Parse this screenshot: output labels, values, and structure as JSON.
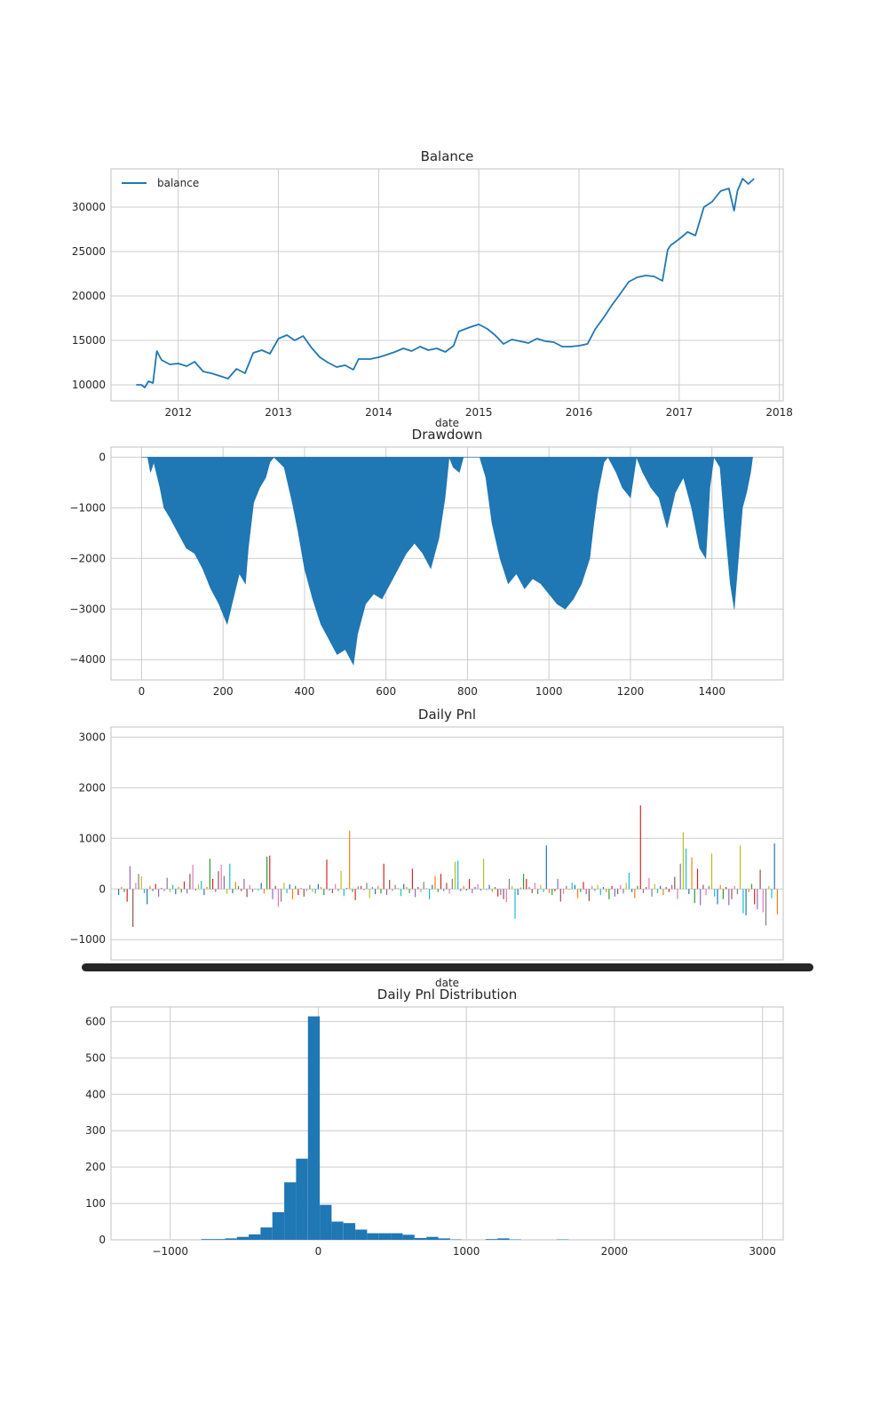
{
  "chart_data": [
    {
      "type": "line",
      "title": "Balance",
      "xlabel": "date",
      "ylabel": "",
      "legend": {
        "position": "upper-left",
        "entries": [
          "balance"
        ]
      },
      "grid": true,
      "color": "#1f77b4",
      "x_tick_labels": [
        "2012",
        "2013",
        "2014",
        "2015",
        "2016",
        "2017",
        "2018"
      ],
      "y_tick_labels": [
        "10000",
        "15000",
        "20000",
        "25000",
        "30000"
      ],
      "xlim": [
        "2011-05-01",
        "2018-01-15"
      ],
      "ylim": [
        8200,
        34300
      ],
      "series": [
        {
          "name": "balance",
          "points": [
            [
              "2011-08-01",
              10000
            ],
            [
              "2011-08-20",
              10000
            ],
            [
              "2011-09-01",
              9700
            ],
            [
              "2011-09-15",
              10400
            ],
            [
              "2011-10-01",
              10200
            ],
            [
              "2011-10-15",
              13800
            ],
            [
              "2011-11-01",
              12800
            ],
            [
              "2011-12-01",
              12300
            ],
            [
              "2012-01-01",
              12400
            ],
            [
              "2012-02-01",
              12100
            ],
            [
              "2012-03-01",
              12600
            ],
            [
              "2012-04-01",
              11500
            ],
            [
              "2012-05-01",
              11300
            ],
            [
              "2012-06-01",
              11000
            ],
            [
              "2012-07-01",
              10700
            ],
            [
              "2012-08-01",
              11800
            ],
            [
              "2012-09-01",
              11300
            ],
            [
              "2012-10-01",
              13600
            ],
            [
              "2012-11-01",
              13900
            ],
            [
              "2012-12-01",
              13500
            ],
            [
              "2013-01-01",
              15200
            ],
            [
              "2013-02-01",
              15600
            ],
            [
              "2013-03-01",
              15000
            ],
            [
              "2013-04-01",
              15500
            ],
            [
              "2013-05-01",
              14200
            ],
            [
              "2013-06-01",
              13100
            ],
            [
              "2013-07-01",
              12500
            ],
            [
              "2013-08-01",
              12000
            ],
            [
              "2013-09-01",
              12200
            ],
            [
              "2013-10-01",
              11700
            ],
            [
              "2013-10-20",
              12900
            ],
            [
              "2013-12-01",
              12900
            ],
            [
              "2014-01-01",
              13100
            ],
            [
              "2014-02-01",
              13400
            ],
            [
              "2014-03-01",
              13700
            ],
            [
              "2014-04-01",
              14100
            ],
            [
              "2014-05-01",
              13800
            ],
            [
              "2014-06-01",
              14300
            ],
            [
              "2014-07-01",
              13900
            ],
            [
              "2014-08-01",
              14100
            ],
            [
              "2014-09-01",
              13700
            ],
            [
              "2014-10-01",
              14400
            ],
            [
              "2014-10-20",
              16000
            ],
            [
              "2014-12-01",
              16500
            ],
            [
              "2015-01-01",
              16800
            ],
            [
              "2015-02-01",
              16300
            ],
            [
              "2015-03-01",
              15600
            ],
            [
              "2015-04-01",
              14600
            ],
            [
              "2015-05-01",
              15100
            ],
            [
              "2015-06-01",
              14900
            ],
            [
              "2015-07-01",
              14700
            ],
            [
              "2015-08-01",
              15200
            ],
            [
              "2015-09-01",
              14900
            ],
            [
              "2015-10-01",
              14800
            ],
            [
              "2015-11-01",
              14300
            ],
            [
              "2015-12-01",
              14300
            ],
            [
              "2016-01-01",
              14400
            ],
            [
              "2016-02-01",
              14600
            ],
            [
              "2016-03-01",
              16300
            ],
            [
              "2016-04-01",
              17600
            ],
            [
              "2016-05-01",
              19000
            ],
            [
              "2016-06-01",
              20300
            ],
            [
              "2016-07-01",
              21600
            ],
            [
              "2016-08-01",
              22100
            ],
            [
              "2016-09-01",
              22300
            ],
            [
              "2016-10-01",
              22200
            ],
            [
              "2016-11-01",
              21700
            ],
            [
              "2016-11-20",
              25200
            ],
            [
              "2016-12-01",
              25700
            ],
            [
              "2017-01-01",
              26400
            ],
            [
              "2017-02-01",
              27200
            ],
            [
              "2017-03-01",
              26800
            ],
            [
              "2017-04-01",
              30000
            ],
            [
              "2017-05-01",
              30600
            ],
            [
              "2017-06-01",
              31800
            ],
            [
              "2017-07-01",
              32100
            ],
            [
              "2017-07-20",
              29600
            ],
            [
              "2017-08-01",
              31800
            ],
            [
              "2017-08-20",
              33200
            ],
            [
              "2017-09-10",
              32600
            ],
            [
              "2017-10-01",
              33200
            ]
          ]
        }
      ]
    },
    {
      "type": "area",
      "title": "Drawdown",
      "xlabel": "",
      "ylabel": "",
      "grid": true,
      "color": "#1f77b4",
      "x_tick_labels": [
        "0",
        "200",
        "400",
        "600",
        "800",
        "1000",
        "1200",
        "1400"
      ],
      "y_tick_labels": [
        "0",
        "−1000",
        "−2000",
        "−3000",
        "−4000"
      ],
      "xlim": [
        -75,
        1575
      ],
      "ylim": [
        -4400,
        200
      ],
      "points": [
        [
          0,
          0
        ],
        [
          15,
          0
        ],
        [
          22,
          -300
        ],
        [
          30,
          -100
        ],
        [
          45,
          -600
        ],
        [
          55,
          -1000
        ],
        [
          70,
          -1200
        ],
        [
          90,
          -1500
        ],
        [
          110,
          -1800
        ],
        [
          130,
          -1900
        ],
        [
          150,
          -2200
        ],
        [
          170,
          -2600
        ],
        [
          190,
          -2900
        ],
        [
          210,
          -3300
        ],
        [
          225,
          -2800
        ],
        [
          240,
          -2300
        ],
        [
          255,
          -2500
        ],
        [
          262,
          -1800
        ],
        [
          275,
          -900
        ],
        [
          290,
          -600
        ],
        [
          305,
          -400
        ],
        [
          315,
          -100
        ],
        [
          325,
          0
        ],
        [
          350,
          -200
        ],
        [
          370,
          -900
        ],
        [
          385,
          -1500
        ],
        [
          400,
          -2200
        ],
        [
          420,
          -2800
        ],
        [
          440,
          -3300
        ],
        [
          460,
          -3600
        ],
        [
          480,
          -3900
        ],
        [
          500,
          -3800
        ],
        [
          520,
          -4100
        ],
        [
          530,
          -3500
        ],
        [
          550,
          -2900
        ],
        [
          570,
          -2700
        ],
        [
          590,
          -2800
        ],
        [
          610,
          -2500
        ],
        [
          630,
          -2200
        ],
        [
          650,
          -1900
        ],
        [
          670,
          -1700
        ],
        [
          690,
          -1900
        ],
        [
          710,
          -2200
        ],
        [
          730,
          -1600
        ],
        [
          745,
          -800
        ],
        [
          755,
          0
        ],
        [
          765,
          -200
        ],
        [
          780,
          -300
        ],
        [
          790,
          0
        ],
        [
          830,
          0
        ],
        [
          845,
          -400
        ],
        [
          860,
          -1300
        ],
        [
          880,
          -2000
        ],
        [
          900,
          -2500
        ],
        [
          920,
          -2300
        ],
        [
          940,
          -2600
        ],
        [
          960,
          -2400
        ],
        [
          980,
          -2500
        ],
        [
          1000,
          -2700
        ],
        [
          1020,
          -2900
        ],
        [
          1040,
          -3000
        ],
        [
          1060,
          -2800
        ],
        [
          1080,
          -2500
        ],
        [
          1100,
          -2000
        ],
        [
          1110,
          -1300
        ],
        [
          1120,
          -700
        ],
        [
          1135,
          -100
        ],
        [
          1145,
          0
        ],
        [
          1165,
          -300
        ],
        [
          1180,
          -600
        ],
        [
          1200,
          -800
        ],
        [
          1215,
          0
        ],
        [
          1230,
          -300
        ],
        [
          1250,
          -600
        ],
        [
          1270,
          -800
        ],
        [
          1290,
          -1400
        ],
        [
          1310,
          -700
        ],
        [
          1330,
          -400
        ],
        [
          1350,
          -1000
        ],
        [
          1370,
          -1800
        ],
        [
          1385,
          -2000
        ],
        [
          1395,
          -600
        ],
        [
          1405,
          0
        ],
        [
          1420,
          -200
        ],
        [
          1430,
          -1200
        ],
        [
          1445,
          -2500
        ],
        [
          1455,
          -3000
        ],
        [
          1465,
          -2000
        ],
        [
          1475,
          -1000
        ],
        [
          1485,
          -700
        ],
        [
          1495,
          -300
        ],
        [
          1500,
          0
        ]
      ]
    },
    {
      "type": "bar",
      "title": "Daily Pnl",
      "xlabel": "date",
      "ylabel": "",
      "grid": true,
      "colors": [
        "#1f77b4",
        "#ff7f0e",
        "#2ca02c",
        "#d62728",
        "#9467bd",
        "#8c564b",
        "#e377c2",
        "#7f7f7f",
        "#bcbd22",
        "#17becf"
      ],
      "y_tick_labels": [
        "−1000",
        "0",
        "1000",
        "2000",
        "3000"
      ],
      "ylim": [
        -1400,
        3200
      ],
      "values": [
        -120,
        40,
        -60,
        -250,
        450,
        -750,
        120,
        300,
        250,
        -80,
        -300,
        60,
        -40,
        100,
        -150,
        20,
        -50,
        220,
        -60,
        80,
        -100,
        40,
        -70,
        150,
        -90,
        300,
        480,
        -30,
        90,
        160,
        -120,
        40,
        600,
        200,
        -60,
        350,
        480,
        260,
        -100,
        500,
        -80,
        140,
        60,
        -40,
        200,
        -160,
        80,
        -60,
        10,
        -30,
        120,
        -90,
        640,
        660,
        -200,
        60,
        -350,
        -250,
        120,
        -80,
        90,
        -200,
        60,
        -120,
        20,
        -150,
        -40,
        80,
        -60,
        -90,
        100,
        40,
        -120,
        580,
        -30,
        -80,
        100,
        -40,
        360,
        -140,
        20,
        1150,
        -60,
        -220,
        50,
        60,
        -30,
        120,
        -180,
        40,
        -100,
        60,
        -90,
        500,
        -120,
        180,
        -40,
        80,
        20,
        -140,
        100,
        40,
        -80,
        400,
        -160,
        40,
        -60,
        140,
        20,
        -200,
        80,
        260,
        -60,
        300,
        -40,
        120,
        -90,
        200,
        540,
        560,
        -40,
        60,
        -30,
        200,
        -80,
        40,
        100,
        -30,
        600,
        -20,
        80,
        -60,
        40,
        -150,
        -120,
        -200,
        -260,
        200,
        60,
        -590,
        -120,
        30,
        300,
        200,
        40,
        -80,
        120,
        -100,
        80,
        -60,
        860,
        -80,
        -120,
        -40,
        200,
        -250,
        -100,
        60,
        -20,
        120,
        80,
        -180,
        -60,
        140,
        -100,
        -240,
        60,
        -40,
        80,
        -120,
        40,
        -60,
        -200,
        60,
        -150,
        -100,
        80,
        -90,
        120,
        320,
        -60,
        -180,
        60,
        1650,
        -80,
        40,
        220,
        -150,
        100,
        -80,
        60,
        -120,
        40,
        -60,
        80,
        240,
        -200,
        500,
        1120,
        800,
        -100,
        620,
        -280,
        400,
        -320,
        80,
        -120,
        60,
        700,
        -150,
        -300,
        80,
        -200,
        40,
        -320,
        -200,
        60,
        -100,
        860,
        -480,
        -520,
        -60,
        100,
        -300,
        -400,
        380,
        -460,
        -720,
        60,
        -180,
        900,
        -500
      ]
    },
    {
      "type": "histogram",
      "title": "Daily Pnl Distribution",
      "xlabel": "",
      "ylabel": "",
      "grid": true,
      "color": "#1f77b4",
      "x_tick_labels": [
        "−1000",
        "0",
        "1000",
        "2000",
        "3000"
      ],
      "y_tick_labels": [
        "0",
        "100",
        "200",
        "300",
        "400",
        "500",
        "600"
      ],
      "xlim": [
        -1400,
        3140
      ],
      "ylim": [
        0,
        640
      ],
      "bin_edges": [
        -790,
        -710,
        -630,
        -550,
        -470,
        -390,
        -310,
        -230,
        -150,
        -70,
        10,
        90,
        170,
        250,
        330,
        410,
        490,
        570,
        650,
        730,
        810,
        890,
        970,
        1050,
        1130,
        1210,
        1290,
        1370,
        1450,
        1530,
        1610,
        1690
      ],
      "counts": [
        2,
        2,
        4,
        8,
        15,
        34,
        76,
        158,
        223,
        614,
        96,
        50,
        46,
        28,
        18,
        18,
        18,
        14,
        5,
        8,
        4,
        1,
        0,
        0,
        2,
        4,
        1,
        0,
        0,
        0,
        1
      ]
    }
  ]
}
